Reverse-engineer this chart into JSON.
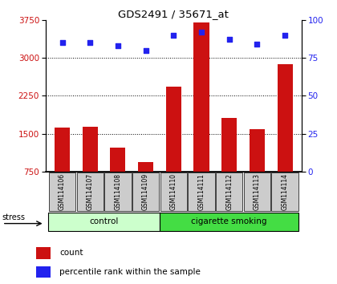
{
  "title": "GDS2491 / 35671_at",
  "samples": [
    "GSM114106",
    "GSM114107",
    "GSM114108",
    "GSM114109",
    "GSM114110",
    "GSM114111",
    "GSM114112",
    "GSM114113",
    "GSM114114"
  ],
  "counts": [
    1620,
    1640,
    1230,
    940,
    2430,
    3700,
    1820,
    1600,
    2870
  ],
  "percentile_ranks": [
    85,
    85,
    83,
    80,
    90,
    92,
    87,
    84,
    90
  ],
  "ylim_left": [
    750,
    3750
  ],
  "ylim_right": [
    0,
    100
  ],
  "yticks_left": [
    750,
    1500,
    2250,
    3000,
    3750
  ],
  "yticks_right": [
    0,
    25,
    50,
    75,
    100
  ],
  "bar_color": "#cc1111",
  "dot_color": "#2222ee",
  "control_color": "#ccffcc",
  "smoking_color": "#44dd44",
  "xlabel_bg": "#cccccc",
  "group_label_control": "control",
  "group_label_smoking": "cigarette smoking",
  "stress_label": "stress",
  "legend_count": "count",
  "legend_pct": "percentile rank within the sample",
  "grid_dotted_color": "#000000",
  "bar_width": 0.55,
  "n_control": 4,
  "n_total": 9
}
